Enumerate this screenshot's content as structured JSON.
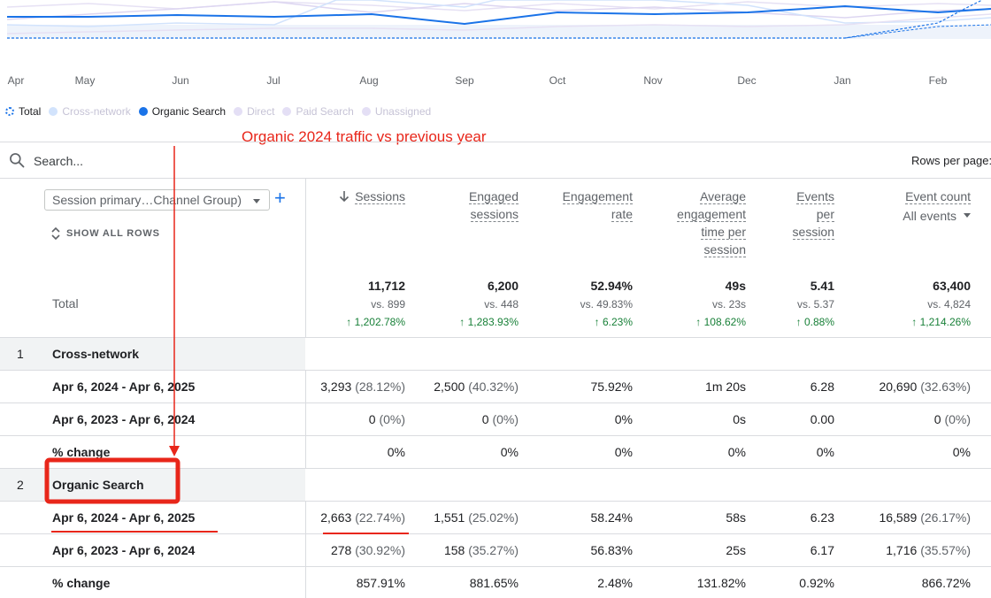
{
  "chart": {
    "months": [
      "Apr",
      "May",
      "Jun",
      "Jul",
      "Aug",
      "Sep",
      "Oct",
      "Nov",
      "Dec",
      "Jan",
      "Feb"
    ]
  },
  "legend": {
    "items": [
      {
        "label": "Total",
        "color": "#1a73e8",
        "active": true,
        "style": "ring"
      },
      {
        "label": "Cross-network",
        "color": "#d2e3fc",
        "active": false
      },
      {
        "label": "Organic Search",
        "color": "#1a73e8",
        "active": true
      },
      {
        "label": "Direct",
        "color": "#e4dff5",
        "active": false
      },
      {
        "label": "Paid Search",
        "color": "#e4dff5",
        "active": false
      },
      {
        "label": "Unassigned",
        "color": "#e4dff5",
        "active": false
      }
    ]
  },
  "annotation": {
    "text": "Organic 2024 traffic vs previous year",
    "color": "#e8261a"
  },
  "search": {
    "placeholder": "Search...",
    "rows_per_page_label": "Rows per page:"
  },
  "table": {
    "dimension_select": "Session primary…Channel Group)",
    "add_icon": "+",
    "show_all_rows": "SHOW ALL ROWS",
    "total_label": "Total",
    "columns": [
      {
        "lines": [
          "Sessions"
        ],
        "sorted": true
      },
      {
        "lines": [
          "Engaged",
          "sessions"
        ]
      },
      {
        "lines": [
          "Engagement",
          "rate"
        ]
      },
      {
        "lines": [
          "Average",
          "engagement",
          "time per",
          "session"
        ]
      },
      {
        "lines": [
          "Events",
          "per",
          "session"
        ]
      },
      {
        "lines": [
          "Event count"
        ],
        "sub_select": "All events"
      }
    ],
    "totals": [
      {
        "value": "11,712",
        "vs": "vs. 899",
        "change": "↑ 1,202.78%"
      },
      {
        "value": "6,200",
        "vs": "vs. 448",
        "change": "↑ 1,283.93%"
      },
      {
        "value": "52.94%",
        "vs": "vs. 49.83%",
        "change": "↑ 6.23%"
      },
      {
        "value": "49s",
        "vs": "vs. 23s",
        "change": "↑ 108.62%"
      },
      {
        "value": "5.41",
        "vs": "vs. 5.37",
        "change": "↑ 0.88%"
      },
      {
        "value": "63,400",
        "vs": "vs. 4,824",
        "change": "↑ 1,214.26%"
      }
    ],
    "rows": [
      {
        "type": "group",
        "index": "1",
        "label": "Cross-network"
      },
      {
        "type": "data",
        "label": "Apr 6, 2024 - Apr 6, 2025",
        "cells": [
          {
            "value": "3,293",
            "pct": "(28.12%)"
          },
          {
            "value": "2,500",
            "pct": "(40.32%)"
          },
          {
            "value": "75.92%"
          },
          {
            "value": "1m 20s"
          },
          {
            "value": "6.28"
          },
          {
            "value": "20,690",
            "pct": "(32.63%)"
          }
        ]
      },
      {
        "type": "data",
        "label": "Apr 6, 2023 - Apr 6, 2024",
        "cells": [
          {
            "value": "0",
            "pct": "(0%)"
          },
          {
            "value": "0",
            "pct": "(0%)"
          },
          {
            "value": "0%"
          },
          {
            "value": "0s"
          },
          {
            "value": "0.00"
          },
          {
            "value": "0",
            "pct": "(0%)"
          }
        ]
      },
      {
        "type": "data",
        "label": "% change",
        "cells": [
          {
            "value": "0%"
          },
          {
            "value": "0%"
          },
          {
            "value": "0%"
          },
          {
            "value": "0%"
          },
          {
            "value": "0%"
          },
          {
            "value": "0%"
          }
        ]
      },
      {
        "type": "group",
        "index": "2",
        "label": "Organic Search"
      },
      {
        "type": "data",
        "label": "Apr 6, 2024 - Apr 6, 2025",
        "cells": [
          {
            "value": "2,663",
            "pct": "(22.74%)"
          },
          {
            "value": "1,551",
            "pct": "(25.02%)"
          },
          {
            "value": "58.24%"
          },
          {
            "value": "58s"
          },
          {
            "value": "6.23"
          },
          {
            "value": "16,589",
            "pct": "(26.17%)"
          }
        ]
      },
      {
        "type": "data",
        "label": "Apr 6, 2023 - Apr 6, 2024",
        "cells": [
          {
            "value": "278",
            "pct": "(30.92%)"
          },
          {
            "value": "158",
            "pct": "(35.27%)"
          },
          {
            "value": "56.83%"
          },
          {
            "value": "25s"
          },
          {
            "value": "6.17"
          },
          {
            "value": "1,716",
            "pct": "(35.57%)"
          }
        ]
      },
      {
        "type": "data",
        "label": "% change",
        "cells": [
          {
            "value": "857.91%"
          },
          {
            "value": "881.65%"
          },
          {
            "value": "2.48%"
          },
          {
            "value": "131.82%"
          },
          {
            "value": "0.92%"
          },
          {
            "value": "866.72%"
          }
        ]
      }
    ]
  }
}
